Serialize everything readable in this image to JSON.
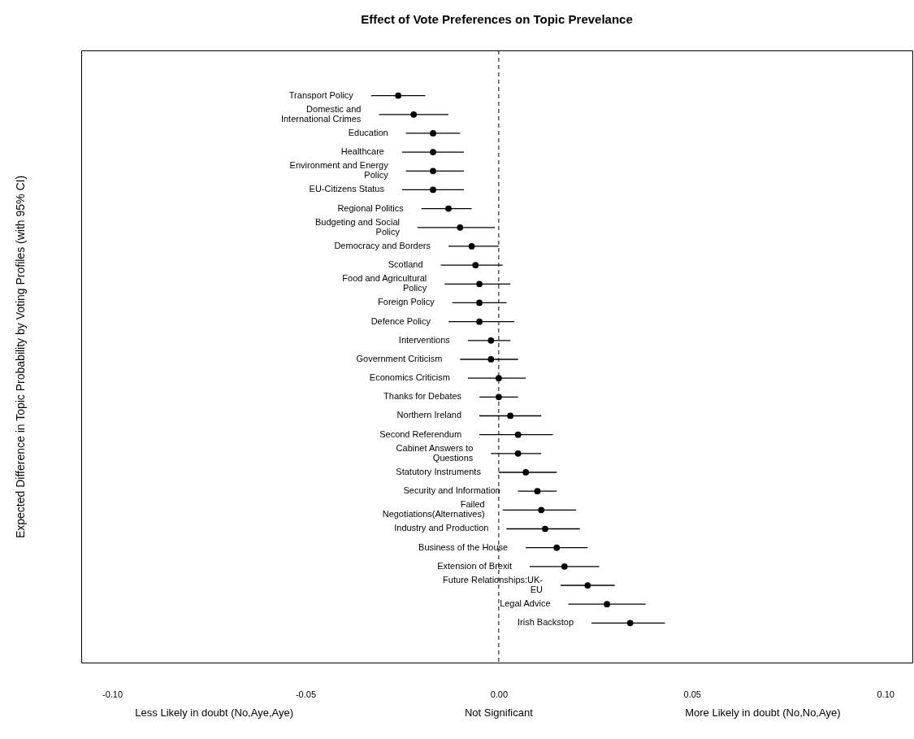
{
  "chart_data": {
    "type": "scatter",
    "title": "Effect of Vote Preferences on Topic Prevelance",
    "ylabel": "Expected Difference in Topic Probability by Voting Profiles (with 95% CI)",
    "orientation": "horizontal",
    "marker": "circle",
    "categories": [
      "Transport Policy",
      "Domestic and\nInternational Crimes",
      "Education",
      "Healthcare",
      "Environment and Energy\nPolicy",
      "EU-Citizens Status",
      "Regional Politics",
      "Budgeting and Social\nPolicy",
      "Democracy and Borders",
      "Scotland",
      "Food and Agricultural\nPolicy",
      "Foreign Policy",
      "Defence Policy",
      "Interventions",
      "Government Criticism",
      "Economics Criticism",
      "Thanks for Debates",
      "Northern Ireland",
      "Second Referendum",
      "Cabinet Answers to\nQuestions",
      "Statutory Instruments",
      "Security and Information",
      "Failed\nNegotiations(Alternatives)",
      "Industry and Production",
      "Business of the House",
      "Extension of Brexit",
      "Future Relationships:UK-\nEU",
      "Legal Advice",
      "Irish Backstop"
    ],
    "series": [
      {
        "color": "#000000",
        "values": [
          -0.026,
          -0.022,
          -0.017,
          -0.017,
          -0.017,
          -0.017,
          -0.013,
          -0.01,
          -0.007,
          -0.006,
          -0.005,
          -0.005,
          -0.005,
          -0.002,
          -0.002,
          0.0,
          0.0,
          0.003,
          0.005,
          0.005,
          0.007,
          0.01,
          0.011,
          0.012,
          0.015,
          0.017,
          0.023,
          0.028,
          0.034
        ],
        "errors": [
          [
            -0.033,
            -0.019
          ],
          [
            -0.031,
            -0.013
          ],
          [
            -0.024,
            -0.01
          ],
          [
            -0.025,
            -0.009
          ],
          [
            -0.024,
            -0.009
          ],
          [
            -0.025,
            -0.009
          ],
          [
            -0.02,
            -0.007
          ],
          [
            -0.021,
            -0.001
          ],
          [
            -0.013,
            0.0
          ],
          [
            -0.015,
            0.001
          ],
          [
            -0.014,
            0.003
          ],
          [
            -0.012,
            0.002
          ],
          [
            -0.013,
            0.004
          ],
          [
            -0.008,
            0.003
          ],
          [
            -0.01,
            0.005
          ],
          [
            -0.008,
            0.007
          ],
          [
            -0.005,
            0.005
          ],
          [
            -0.005,
            0.011
          ],
          [
            -0.005,
            0.014
          ],
          [
            -0.002,
            0.011
          ],
          [
            0.0,
            0.015
          ],
          [
            0.005,
            0.015
          ],
          [
            0.001,
            0.02
          ],
          [
            0.002,
            0.021
          ],
          [
            0.007,
            0.023
          ],
          [
            0.008,
            0.026
          ],
          [
            0.016,
            0.03
          ],
          [
            0.018,
            0.038
          ],
          [
            0.024,
            0.043
          ]
        ]
      }
    ],
    "xlim": [
      -0.108,
      0.107
    ],
    "xticks": [
      {
        "value": -0.1,
        "label": "-0.10"
      },
      {
        "value": -0.05,
        "label": "-0.05"
      },
      {
        "value": 0,
        "label": "0.00"
      },
      {
        "value": 0.05,
        "label": "0.05"
      },
      {
        "value": 0.1,
        "label": "0.10"
      }
    ],
    "ref_lines": [
      {
        "axis": "x",
        "value": 0,
        "line_style": "dashed",
        "color": "#000000"
      }
    ],
    "annotations": [
      "Less Likely in doubt (No,Aye,Aye)",
      "Not Significant",
      "More Likely in doubt (No,No,Aye)"
    ]
  }
}
